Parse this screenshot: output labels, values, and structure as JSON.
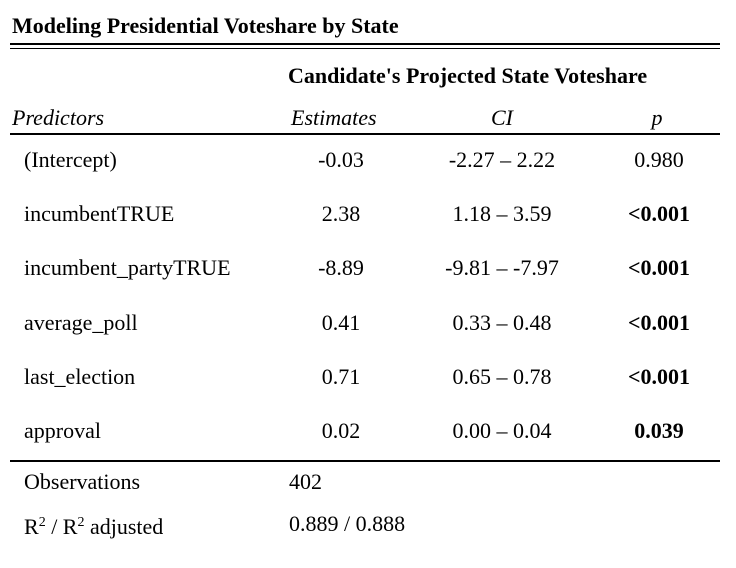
{
  "title": "Modeling Presidential Voteshare by State",
  "group_header": "Candidate's Projected State Voteshare",
  "columns": {
    "predictors": "Predictors",
    "estimates": "Estimates",
    "ci": "CI",
    "p": "p"
  },
  "rows": [
    {
      "predictor": "(Intercept)",
      "estimate": "-0.03",
      "ci": "-2.27 – 2.22",
      "p": "0.980",
      "p_bold": false
    },
    {
      "predictor": "incumbentTRUE",
      "estimate": "2.38",
      "ci": "1.18 – 3.59",
      "p": "<0.001",
      "p_bold": true
    },
    {
      "predictor": "incumbent_partyTRUE",
      "estimate": "-8.89",
      "ci": "-9.81 – -7.97",
      "p": "<0.001",
      "p_bold": true
    },
    {
      "predictor": "average_poll",
      "estimate": "0.41",
      "ci": "0.33 – 0.48",
      "p": "<0.001",
      "p_bold": true
    },
    {
      "predictor": "last_election",
      "estimate": "0.71",
      "ci": "0.65 – 0.78",
      "p": "<0.001",
      "p_bold": true
    },
    {
      "predictor": "approval",
      "estimate": "0.02",
      "ci": "0.00 – 0.04",
      "p": "0.039",
      "p_bold": true
    }
  ],
  "footer": {
    "observations_label": "Observations",
    "observations_value": "402",
    "r2_base": "R",
    "r2_sup": "2",
    "r2_sep": " / R",
    "r2_adj_sup": "2",
    "r2_suffix": " adjusted",
    "r2_value": "0.889 / 0.888"
  }
}
